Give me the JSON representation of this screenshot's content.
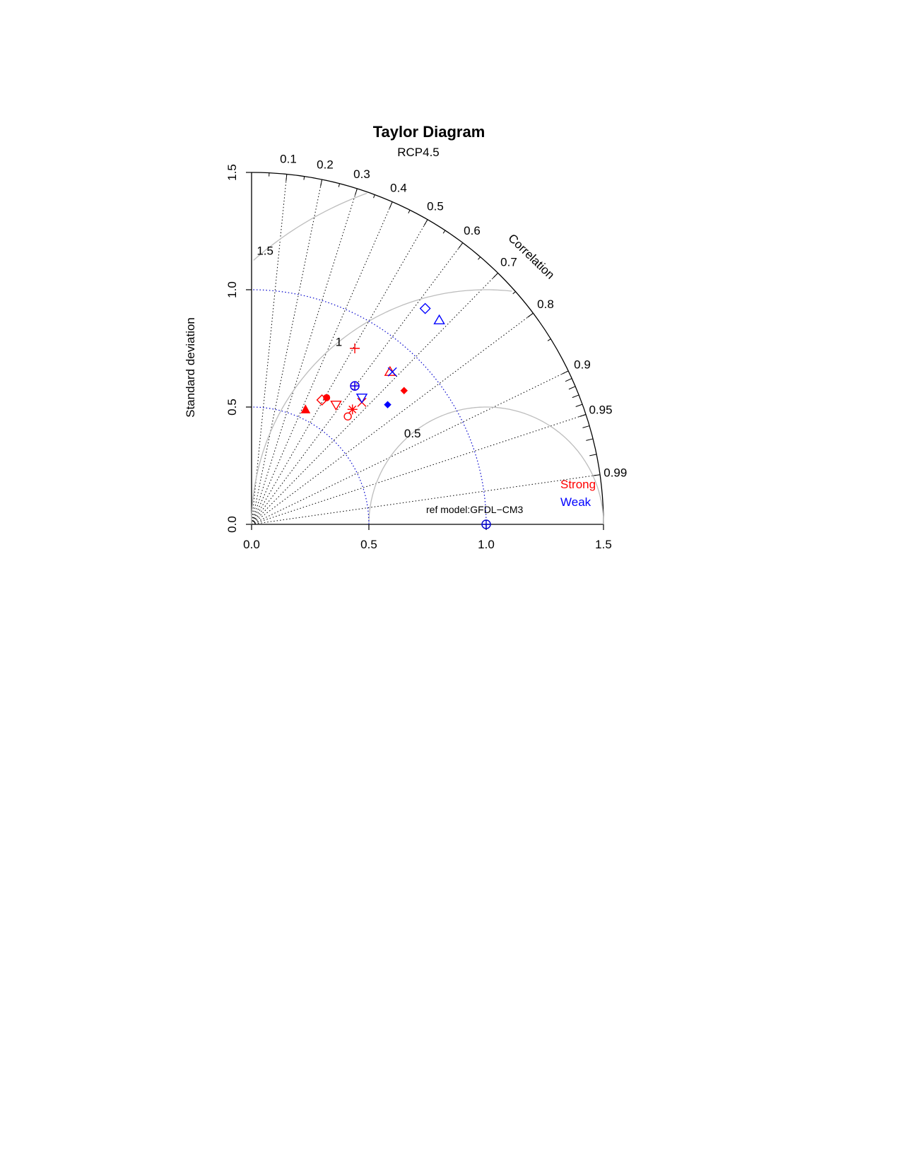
{
  "chart_data": {
    "type": "scatter",
    "subtype": "taylor-diagram",
    "title": "Taylor Diagram",
    "subtitle": "RCP4.5",
    "ylabel": "Standard deviation",
    "xlabel": "",
    "correlation_label": "Correlation",
    "sd_range": [
      0,
      1.5
    ],
    "sd_ticks": [
      "0.0",
      "0.5",
      "1.0",
      "1.5"
    ],
    "correlation_labels": [
      "0.1",
      "0.2",
      "0.3",
      "0.4",
      "0.5",
      "0.6",
      "0.7",
      "0.8",
      "0.9",
      "0.95",
      "0.99"
    ],
    "rms_contours": [
      {
        "value": 0.5,
        "label": "0.5"
      },
      {
        "value": 1.0,
        "label": "1"
      },
      {
        "value": 1.5,
        "label": "1.5"
      }
    ],
    "reference": {
      "label": "ref model:GFDL−CM3",
      "sd": 1.0,
      "color": "#0000cc",
      "marker": "circle-plus"
    },
    "legend": {
      "placement": "bottom-right",
      "entries": [
        {
          "name": "Strong",
          "color": "#ff0000"
        },
        {
          "name": "Weak",
          "color": "#0000ff"
        }
      ]
    },
    "series": [
      {
        "name": "Strong",
        "color": "#ff0000",
        "points": [
          {
            "x": 0.44,
            "y": 0.75,
            "marker": "plus"
          },
          {
            "x": 0.59,
            "y": 0.65,
            "marker": "triangle-open"
          },
          {
            "x": 0.44,
            "y": 0.59,
            "marker": "circle-plus"
          },
          {
            "x": 0.65,
            "y": 0.57,
            "marker": "diamond-filled"
          },
          {
            "x": 0.32,
            "y": 0.54,
            "marker": "circle-filled"
          },
          {
            "x": 0.3,
            "y": 0.53,
            "marker": "diamond-open"
          },
          {
            "x": 0.36,
            "y": 0.51,
            "marker": "triangle-down-open"
          },
          {
            "x": 0.47,
            "y": 0.52,
            "marker": "cross"
          },
          {
            "x": 0.43,
            "y": 0.49,
            "marker": "asterisk"
          },
          {
            "x": 0.23,
            "y": 0.49,
            "marker": "triangle-filled"
          },
          {
            "x": 0.41,
            "y": 0.46,
            "marker": "circle-open"
          }
        ]
      },
      {
        "name": "Weak",
        "color": "#0000ff",
        "points": [
          {
            "x": 0.74,
            "y": 0.92,
            "marker": "diamond-open"
          },
          {
            "x": 0.8,
            "y": 0.87,
            "marker": "triangle-open"
          },
          {
            "x": 0.6,
            "y": 0.65,
            "marker": "cross"
          },
          {
            "x": 0.44,
            "y": 0.59,
            "marker": "circle-plus"
          },
          {
            "x": 0.47,
            "y": 0.54,
            "marker": "triangle-down-open"
          },
          {
            "x": 0.58,
            "y": 0.51,
            "marker": "diamond-filled"
          }
        ]
      }
    ]
  }
}
